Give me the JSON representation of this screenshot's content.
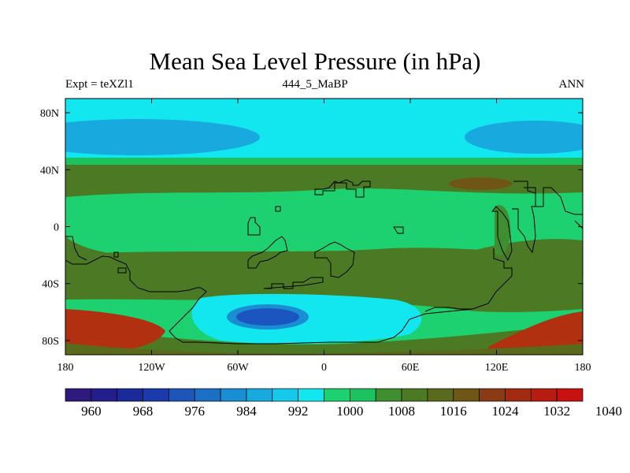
{
  "title": "Mean Sea Level Pressure (in hPa)",
  "subtitle_left": "Expt = teXZl1",
  "subtitle_center": "444_5_MaBP",
  "subtitle_right": "ANN",
  "lat_labels": [
    "80N",
    "40N",
    "0",
    "40S",
    "80S"
  ],
  "lat_values": [
    80,
    40,
    0,
    -40,
    -80
  ],
  "lon_labels": [
    "180",
    "120W",
    "60W",
    "0",
    "60E",
    "120E",
    "180"
  ],
  "lon_values": [
    -180,
    -120,
    -60,
    0,
    60,
    120,
    180
  ],
  "colorbar": {
    "labels": [
      "960",
      "968",
      "976",
      "984",
      "992",
      "1000",
      "1008",
      "1016",
      "1024",
      "1032",
      "1040"
    ],
    "colors": [
      "#2e1a7c",
      "#221f8c",
      "#1a2a9b",
      "#1b3aab",
      "#1d55b8",
      "#1b6fc4",
      "#1a8ed2",
      "#18a9df",
      "#16c9ea",
      "#12e6ef",
      "#1dd070",
      "#1cc25d",
      "#3f8e2f",
      "#4c7a24",
      "#5a6a1c",
      "#6f5516",
      "#8a3b13",
      "#a12a10",
      "#b61c0f",
      "#c8120f"
    ]
  },
  "map_bands": [
    {
      "name": "polar-north",
      "color": "#12e6ef"
    },
    {
      "name": "low-north",
      "color": "#18a9df"
    },
    {
      "name": "subtropical-high",
      "color": "#4c7a24"
    },
    {
      "name": "equatorial",
      "color": "#1dd070"
    },
    {
      "name": "southern-high",
      "color": "#4c7a24"
    },
    {
      "name": "southern-low",
      "color": "#12e6ef"
    },
    {
      "name": "deep-low",
      "color": "#1a55c8"
    },
    {
      "name": "polar-high",
      "color": "#b0300f"
    }
  ]
}
